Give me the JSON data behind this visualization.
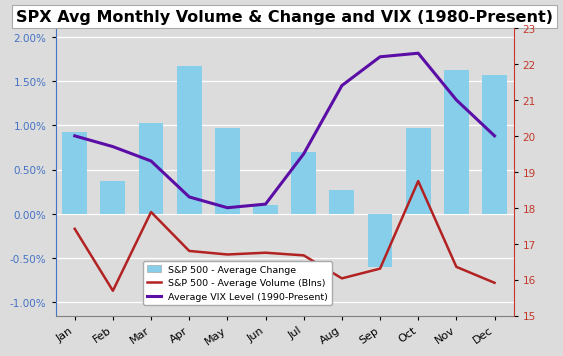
{
  "title": "SPX Avg Monthly Volume & Change and VIX (1980-Present)",
  "months": [
    "Jan",
    "Feb",
    "Mar",
    "Apr",
    "May",
    "Jun",
    "Jul",
    "Aug",
    "Sep",
    "Oct",
    "Nov",
    "Dec"
  ],
  "bar_values": [
    0.0093,
    0.0037,
    0.0103,
    0.0167,
    0.0097,
    0.001,
    0.007,
    0.0027,
    -0.006,
    0.0097,
    0.0163,
    0.0157
  ],
  "volume_values": [
    -0.0017,
    -0.0087,
    0.0002,
    -0.0042,
    -0.0046,
    -0.0044,
    -0.0047,
    -0.0073,
    -0.0062,
    0.0037,
    -0.006,
    -0.0078
  ],
  "vix_values": [
    20.0,
    19.7,
    19.3,
    18.3,
    18.0,
    18.1,
    19.5,
    21.4,
    22.2,
    22.3,
    21.0,
    20.0
  ],
  "bar_color": "#87CEEB",
  "volume_color": "#B22222",
  "vix_color": "#5B0EA6",
  "ylim_left": [
    -0.0115,
    0.021
  ],
  "ylim_right": [
    15,
    23
  ],
  "yticks_left": [
    -0.01,
    -0.005,
    0.0,
    0.005,
    0.01,
    0.015,
    0.02
  ],
  "yticks_right": [
    15,
    16,
    17,
    18,
    19,
    20,
    21,
    22,
    23
  ],
  "legend_labels": [
    "S&P 500 - Average Change",
    "S&P 500 - Average Volume (Blns)",
    "Average VIX Level (1990-Present)"
  ],
  "title_fontsize": 11.5,
  "bg_color": "#dcdcdc"
}
